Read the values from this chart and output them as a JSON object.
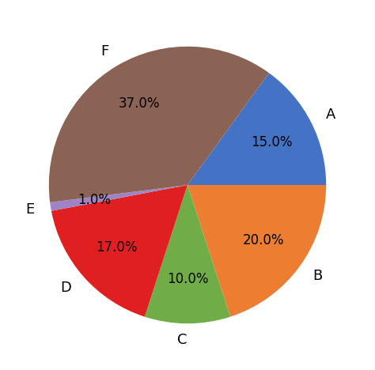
{
  "labels": [
    "A",
    "B",
    "C",
    "D",
    "E",
    "F"
  ],
  "sizes": [
    15.0,
    20.0,
    10.0,
    17.0,
    1.0,
    37.0
  ],
  "colors": [
    "#4472C4",
    "#ED7D31",
    "#70AD47",
    "#E02020",
    "#9E84C4",
    "#8B6355"
  ],
  "startangle": 54,
  "label_distance": 1.12,
  "pct_distance": 0.68,
  "font_size_labels": 13,
  "font_size_pct": 12,
  "background_color": "#ffffff"
}
